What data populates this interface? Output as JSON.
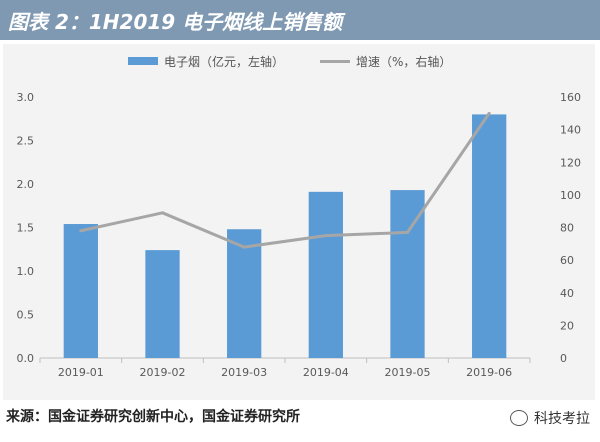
{
  "header": {
    "title": "图表 2：1H2019 电子烟线上销售额"
  },
  "source": {
    "text": "来源：国金证券研究创新中心，国金证券研究所"
  },
  "watermark": {
    "text": "科技考拉"
  },
  "chart_data": {
    "type": "bar",
    "categories": [
      "2019-01",
      "2019-02",
      "2019-03",
      "2019-04",
      "2019-05",
      "2019-06"
    ],
    "series": [
      {
        "name": "电子烟（亿元，左轴）",
        "type": "bar",
        "axis": "left",
        "values": [
          1.54,
          1.24,
          1.48,
          1.91,
          1.93,
          2.8
        ],
        "color": "#5b9bd5"
      },
      {
        "name": "增速（%，右轴）",
        "type": "line",
        "axis": "right",
        "values": [
          78,
          89,
          68,
          75,
          77,
          150
        ],
        "color": "#a6a6a6"
      }
    ],
    "y_left": {
      "min": 0,
      "max": 3,
      "ticks": [
        "0.0",
        "0.5",
        "1.0",
        "1.5",
        "2.0",
        "2.5",
        "3.0"
      ]
    },
    "y_right": {
      "min": 0,
      "max": 160,
      "ticks": [
        "0",
        "20",
        "40",
        "60",
        "80",
        "100",
        "120",
        "140",
        "160"
      ]
    },
    "legend": "top",
    "grid": false
  }
}
